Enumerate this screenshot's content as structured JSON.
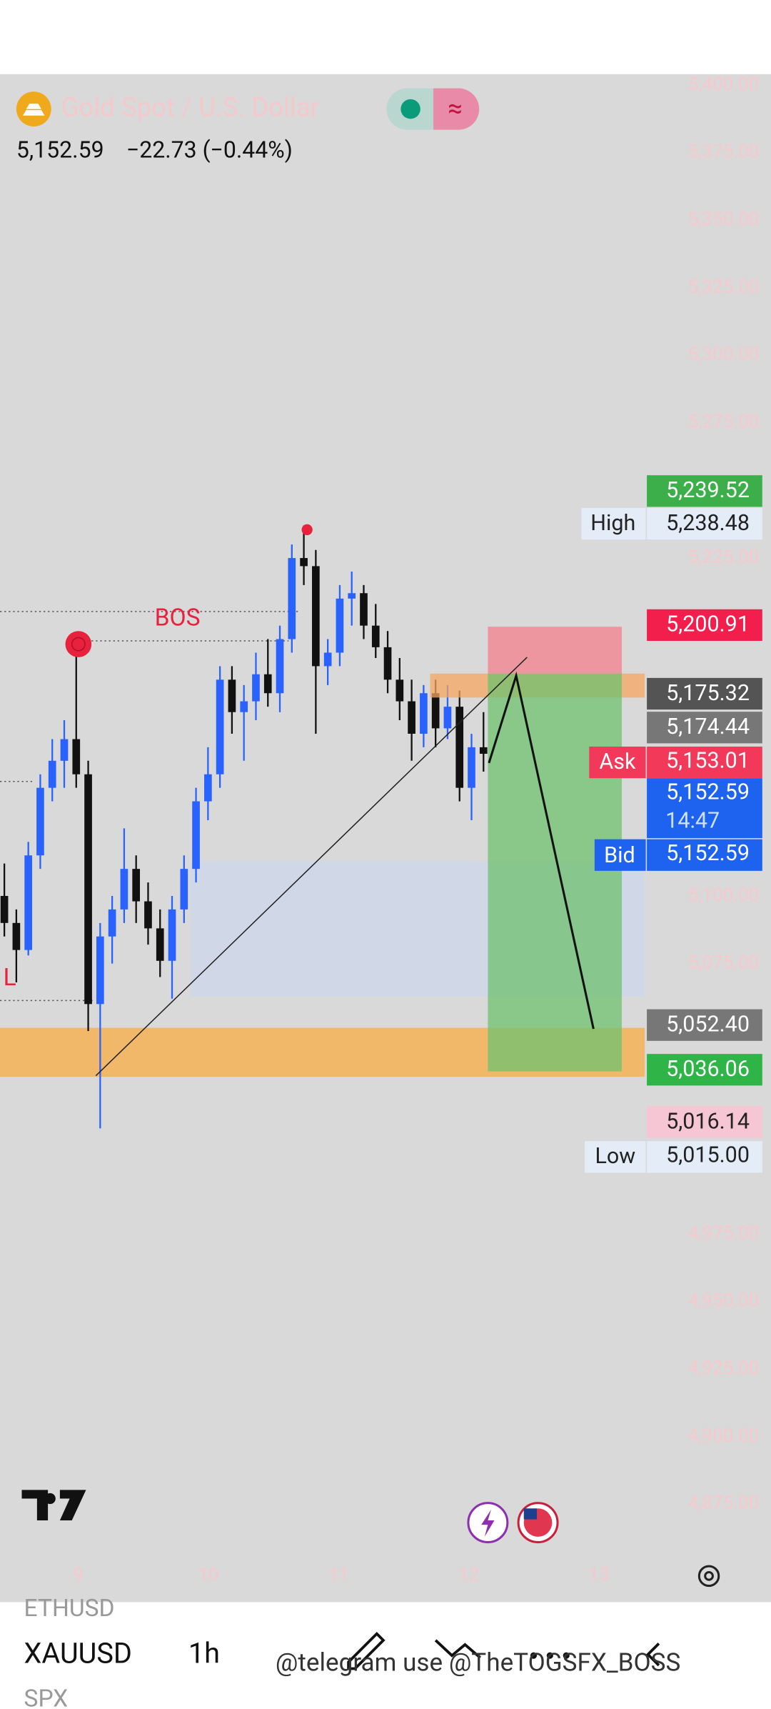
{
  "header": {
    "title": "Gold Spot / U.S. Dollar",
    "price": "5,152.59",
    "change": "−22.73 (−0.44%)"
  },
  "chart_data": {
    "type": "candlestick",
    "ylim": [
      4858.9,
      5403.2
    ],
    "yticks": [
      {
        "value": 5400,
        "label": "5,400.00"
      },
      {
        "value": 5375,
        "label": "5,375.00"
      },
      {
        "value": 5350,
        "label": "5,350.00"
      },
      {
        "value": 5325,
        "label": "5,325.00"
      },
      {
        "value": 5300,
        "label": "5,300.00"
      },
      {
        "value": 5275,
        "label": "5,275.00"
      },
      {
        "value": 5225,
        "label": "5,225.00"
      },
      {
        "value": 5100,
        "label": "5,100.00"
      },
      {
        "value": 5075,
        "label": "5,075.00"
      },
      {
        "value": 4975,
        "label": "4,975.00"
      },
      {
        "value": 4950,
        "label": "4,950.00"
      },
      {
        "value": 4925,
        "label": "4,925.00"
      },
      {
        "value": 4900,
        "label": "4,900.00"
      },
      {
        "value": 4875,
        "label": "4,875.00"
      }
    ],
    "x_labels": [
      "9",
      "10",
      "11",
      "12",
      "13"
    ],
    "up_color": "#2962ff",
    "down_color": "#111111",
    "candles": [
      [
        5100,
        5112,
        5085,
        5090
      ],
      [
        5090,
        5095,
        5068,
        5080
      ],
      [
        5080,
        5120,
        5078,
        5115
      ],
      [
        5115,
        5145,
        5110,
        5140
      ],
      [
        5140,
        5158,
        5135,
        5150
      ],
      [
        5150,
        5165,
        5140,
        5158
      ],
      [
        5158,
        5190,
        5140,
        5145
      ],
      [
        5145,
        5150,
        5050,
        5060
      ],
      [
        5060,
        5090,
        5014,
        5085
      ],
      [
        5085,
        5100,
        5075,
        5095
      ],
      [
        5095,
        5125,
        5090,
        5110
      ],
      [
        5110,
        5115,
        5090,
        5098
      ],
      [
        5098,
        5105,
        5082,
        5088
      ],
      [
        5088,
        5095,
        5070,
        5076
      ],
      [
        5076,
        5100,
        5062,
        5095
      ],
      [
        5095,
        5115,
        5090,
        5110
      ],
      [
        5110,
        5140,
        5105,
        5135
      ],
      [
        5135,
        5155,
        5128,
        5145
      ],
      [
        5145,
        5185,
        5140,
        5180
      ],
      [
        5180,
        5185,
        5160,
        5168
      ],
      [
        5168,
        5178,
        5150,
        5172
      ],
      [
        5172,
        5190,
        5165,
        5182
      ],
      [
        5182,
        5195,
        5170,
        5175
      ],
      [
        5175,
        5200,
        5168,
        5195
      ],
      [
        5195,
        5230,
        5190,
        5225
      ],
      [
        5225,
        5237,
        5215,
        5222
      ],
      [
        5222,
        5228,
        5160,
        5185
      ],
      [
        5185,
        5195,
        5178,
        5190
      ],
      [
        5190,
        5215,
        5185,
        5210
      ],
      [
        5210,
        5220,
        5200,
        5212
      ],
      [
        5212,
        5215,
        5195,
        5200
      ],
      [
        5200,
        5208,
        5188,
        5192
      ],
      [
        5192,
        5198,
        5175,
        5180
      ],
      [
        5180,
        5188,
        5165,
        5172
      ],
      [
        5172,
        5180,
        5150,
        5160
      ],
      [
        5160,
        5178,
        5155,
        5175
      ],
      [
        5175,
        5180,
        5155,
        5162
      ],
      [
        5162,
        5178,
        5158,
        5170
      ],
      [
        5170,
        5176,
        5135,
        5140
      ],
      [
        5140,
        5160,
        5128,
        5155
      ],
      [
        5155,
        5168,
        5146,
        5152.59
      ]
    ]
  },
  "annotations": {
    "bos": "BOS",
    "low_mark": "L"
  },
  "price_labels": {
    "p1": "5,239.52",
    "high_tag": "High",
    "high": "5,238.48",
    "p2": "5,200.91",
    "p3": "5,175.32",
    "p4": "5,174.44",
    "ask_tag": "Ask",
    "ask": "5,153.01",
    "last": "5,152.59",
    "countdown": "14:47",
    "bid_tag": "Bid",
    "bid": "5,152.59",
    "p5": "5,052.40",
    "p6": "5,036.06",
    "p7": "5,016.14",
    "low_tag": "Low",
    "low": "5,015.00"
  },
  "toolbar": {
    "symbol_above": "ETHUSD",
    "symbol": "XAUUSD",
    "interval": "1h",
    "symbol_below": "SPX",
    "watermark": "@telegram use @TheTOGSFX_BOSS"
  }
}
